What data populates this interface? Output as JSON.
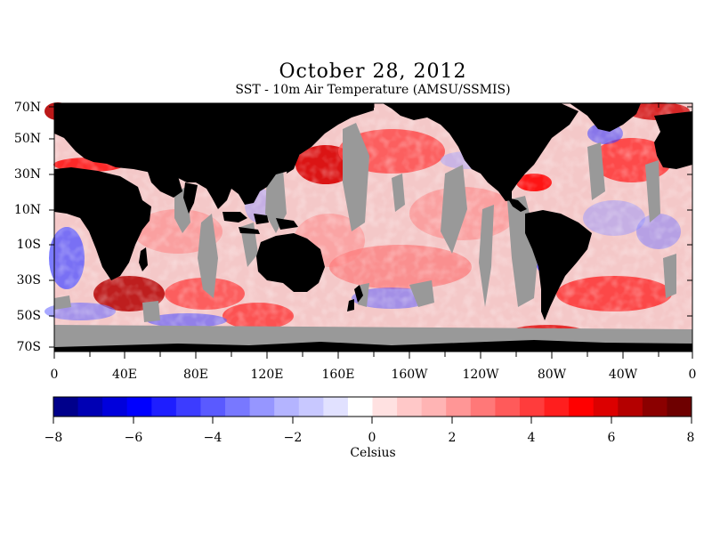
{
  "header": {
    "title": "October 28, 2012",
    "subtitle": "SST - 10m Air Temperature (AMSU/SSMIS)"
  },
  "map": {
    "lat_labels": [
      "70N",
      "50N",
      "30N",
      "10N",
      "10S",
      "30S",
      "50S",
      "70S"
    ],
    "lon_labels": [
      "0",
      "40E",
      "80E",
      "120E",
      "160E",
      "160W",
      "120W",
      "80W",
      "40W",
      "0"
    ],
    "colors": {
      "land": "#000000",
      "no_data": "#999999",
      "ocean_base": "#f4c8c8"
    }
  },
  "colorbar": {
    "tick_labels": [
      "−8",
      "−6",
      "−4",
      "−2",
      "0",
      "2",
      "4",
      "6",
      "8"
    ],
    "units": "Celsius",
    "colors": [
      "#00008b",
      "#0000b4",
      "#0000dc",
      "#0000ff",
      "#1e1eff",
      "#3c3cff",
      "#5a5aff",
      "#7878ff",
      "#9696ff",
      "#b4b4ff",
      "#c8c8ff",
      "#e1e1ff",
      "#ffffff",
      "#ffe1e1",
      "#ffc8c8",
      "#ffb4b4",
      "#ff9696",
      "#ff7878",
      "#ff5a5a",
      "#ff3c3c",
      "#ff1e1e",
      "#ff0000",
      "#dc0000",
      "#b40000",
      "#8b0000",
      "#6e0000"
    ]
  }
}
